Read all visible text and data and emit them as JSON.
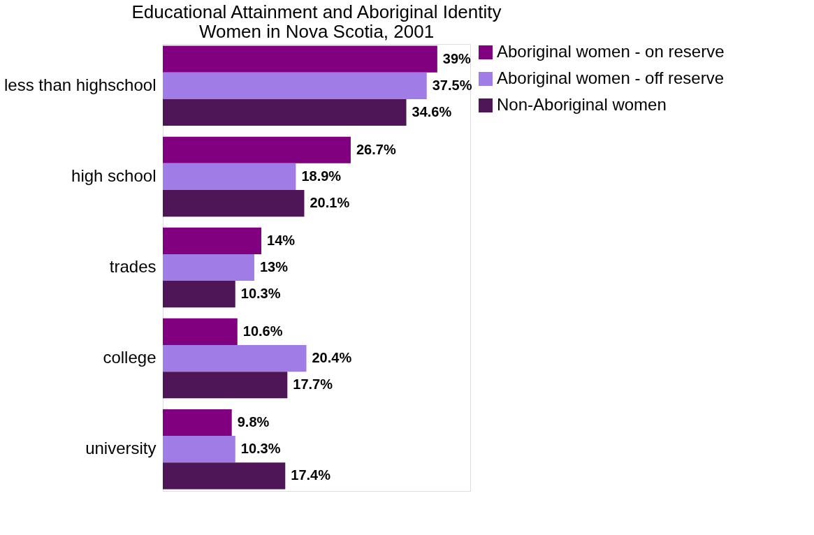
{
  "chart_data": {
    "type": "bar",
    "orientation": "horizontal",
    "title": "Educational Attainment and Aboriginal Identity\nWomen in Nova Scotia, 2001",
    "categories": [
      "less than highschool",
      "high school",
      "trades",
      "college",
      "university"
    ],
    "series": [
      {
        "name": "Aboriginal women - on reserve",
        "color": "#800080",
        "values": [
          39,
          26.7,
          14,
          10.6,
          9.8
        ],
        "value_labels": [
          "39%",
          "26.7%",
          "14%",
          "10.6%",
          "9.8%"
        ]
      },
      {
        "name": "Aboriginal women - off reserve",
        "color": "#a07ce6",
        "values": [
          37.5,
          18.9,
          13,
          20.4,
          10.3
        ],
        "value_labels": [
          "37.5%",
          "18.9%",
          "13%",
          "20.4%",
          "10.3%"
        ]
      },
      {
        "name": "Non-Aboriginal women",
        "color": "#4f1657",
        "values": [
          34.6,
          20.1,
          10.3,
          17.7,
          17.4
        ],
        "value_labels": [
          "34.6%",
          "20.1%",
          "10.3%",
          "17.7%",
          "17.4%"
        ]
      }
    ],
    "legend": "right",
    "grid": false,
    "tick_labels": "y"
  }
}
